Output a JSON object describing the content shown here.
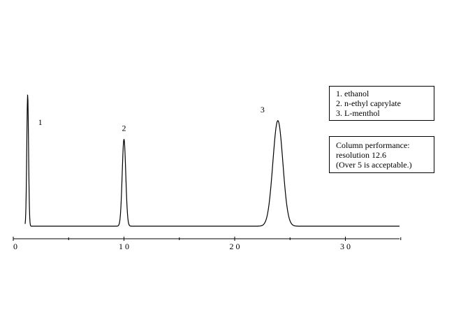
{
  "chart_data": {
    "type": "line",
    "title": "",
    "xlabel": "",
    "ylabel": "",
    "xlim": [
      0,
      35
    ],
    "x_ticks": [
      {
        "value": 0,
        "label": "0"
      },
      {
        "value": 10,
        "label": "1 0"
      },
      {
        "value": 20,
        "label": "2 0"
      },
      {
        "value": 30,
        "label": "3 0"
      }
    ],
    "grid": false,
    "peaks": [
      {
        "label": "1",
        "name": "ethanol",
        "retention_time": 1.3,
        "relative_height": 1.0,
        "width_sd": 0.08
      },
      {
        "label": "2",
        "name": "n-ethyl caprylate",
        "retention_time": 10.0,
        "relative_height": 0.66,
        "width_sd": 0.16
      },
      {
        "label": "3",
        "name": "L-menthol",
        "retention_time": 23.9,
        "relative_height": 0.8,
        "width_sd": 0.45
      }
    ],
    "legend": {
      "placement": "top-right",
      "entries": [
        "1.  ethanol",
        "2.  n-ethyl caprylate",
        "3.  L-menthol"
      ]
    },
    "annotation": {
      "lines": [
        "Column performance:",
        "resolution 12.6",
        "(Over 5 is acceptable.)"
      ]
    }
  }
}
